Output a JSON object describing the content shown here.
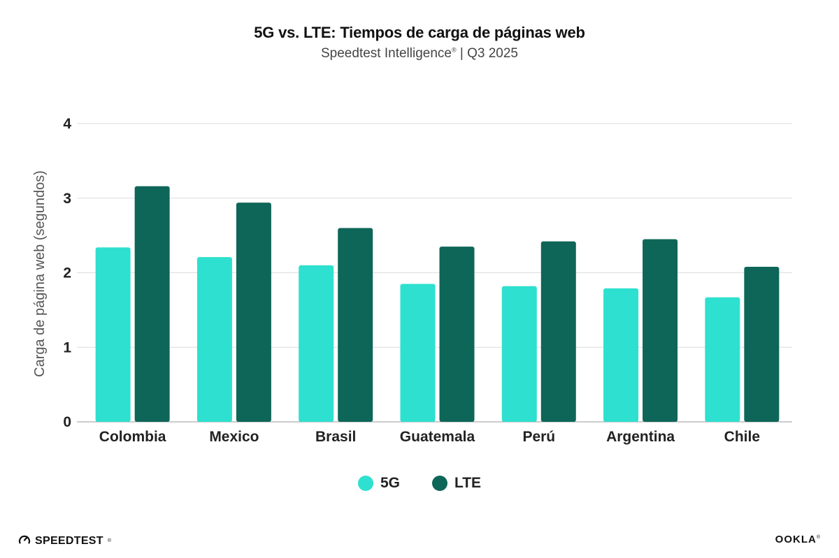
{
  "header": {
    "title": "5G vs. LTE: Tiempos de carga de páginas web",
    "subtitle_main": "Speedtest Intelligence",
    "subtitle_mark": "®",
    "subtitle_rest": " | Q3 2025"
  },
  "chart_data": {
    "type": "bar",
    "categories": [
      "Colombia",
      "Mexico",
      "Brasil",
      "Guatemala",
      "Perú",
      "Argentina",
      "Chile"
    ],
    "series": [
      {
        "name": "5G",
        "color": "#2ee0cf",
        "values": [
          2.34,
          2.21,
          2.1,
          1.85,
          1.82,
          1.79,
          1.67
        ]
      },
      {
        "name": "LTE",
        "color": "#0e6658",
        "values": [
          3.16,
          2.94,
          2.6,
          2.35,
          2.42,
          2.45,
          2.08
        ]
      }
    ],
    "ylabel": "Carga de página web (segundos)",
    "xlabel": "",
    "ylim": [
      0,
      4
    ],
    "yticks": [
      0,
      1,
      2,
      3,
      4
    ],
    "grid": true,
    "legend_position": "bottom-center"
  },
  "footer": {
    "speedtest_logo": "SPEEDTEST",
    "speedtest_mark": "®",
    "ookla_logo": "OOKLA",
    "ookla_mark": "®",
    "speedtest_icon": "gauge-icon"
  }
}
